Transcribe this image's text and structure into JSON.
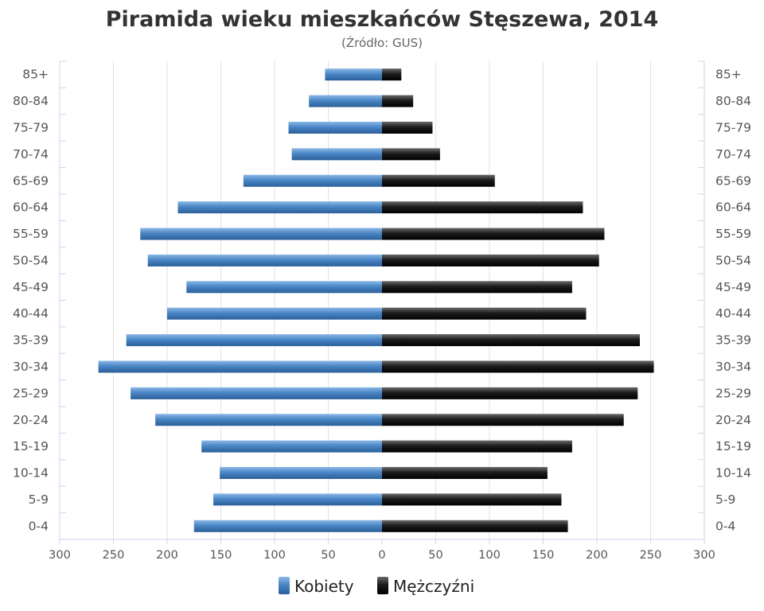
{
  "chart_data": {
    "type": "bar",
    "orientation": "horizontal",
    "title": "Piramida wieku mieszkańców Stęszewa, 2014",
    "subtitle": "(Źródło: GUS)",
    "categories": [
      "85+",
      "80-84",
      "75-79",
      "70-74",
      "65-69",
      "60-64",
      "55-59",
      "50-54",
      "45-49",
      "40-44",
      "35-39",
      "30-34",
      "25-29",
      "20-24",
      "15-19",
      "10-14",
      "5-9",
      "0-4"
    ],
    "series": [
      {
        "name": "Kobiety",
        "color": "#4a86c6",
        "values": [
          53,
          68,
          87,
          84,
          129,
          190,
          225,
          218,
          182,
          200,
          238,
          264,
          234,
          211,
          168,
          151,
          157,
          175
        ]
      },
      {
        "name": "Mężczyźni",
        "color": "#1a1a1a",
        "values": [
          18,
          29,
          47,
          54,
          105,
          187,
          207,
          202,
          177,
          190,
          240,
          253,
          238,
          225,
          177,
          154,
          167,
          173
        ]
      }
    ],
    "xlim": [
      -300,
      300
    ],
    "x_ticks": [
      "300",
      "250",
      "200",
      "150",
      "100",
      "50",
      "0",
      "50",
      "100",
      "150",
      "200",
      "250",
      "300"
    ],
    "grid": true,
    "legend_position": "bottom-center"
  }
}
